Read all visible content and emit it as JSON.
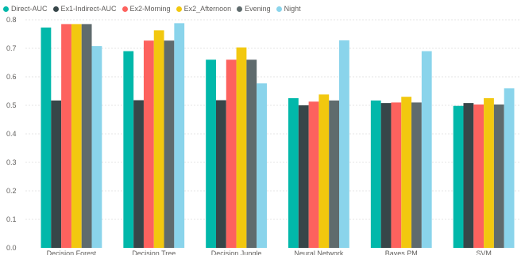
{
  "chart_data": {
    "type": "bar",
    "categories": [
      "Decision Forest",
      "Decision Tree",
      "Decision Jungle",
      "Neural Network",
      "Bayes PM",
      "SVM"
    ],
    "series": [
      {
        "name": "Direct-AUC",
        "color": "#01b8aa",
        "values": [
          0.773,
          0.69,
          0.66,
          0.525,
          0.517,
          0.498
        ]
      },
      {
        "name": "Ex1-Indirect-AUC",
        "color": "#374649",
        "values": [
          0.517,
          0.518,
          0.518,
          0.5,
          0.508,
          0.508
        ]
      },
      {
        "name": "Ex2-Morning",
        "color": "#fd625e",
        "values": [
          0.785,
          0.727,
          0.66,
          0.513,
          0.51,
          0.503
        ]
      },
      {
        "name": "Ex2_Afternoon",
        "color": "#f2c80f",
        "values": [
          0.785,
          0.763,
          0.703,
          0.538,
          0.53,
          0.525
        ]
      },
      {
        "name": "Evening",
        "color": "#5f6b6d",
        "values": [
          0.785,
          0.727,
          0.66,
          0.517,
          0.51,
          0.503
        ]
      },
      {
        "name": "Night",
        "color": "#8ad4eb",
        "values": [
          0.708,
          0.788,
          0.577,
          0.728,
          0.69,
          0.56
        ]
      }
    ],
    "yticks": [
      "0.0",
      "0.1",
      "0.2",
      "0.3",
      "0.4",
      "0.5",
      "0.6",
      "0.7",
      "0.8"
    ],
    "ylim": [
      0,
      0.8
    ],
    "grid": true,
    "legend": "top-left"
  }
}
